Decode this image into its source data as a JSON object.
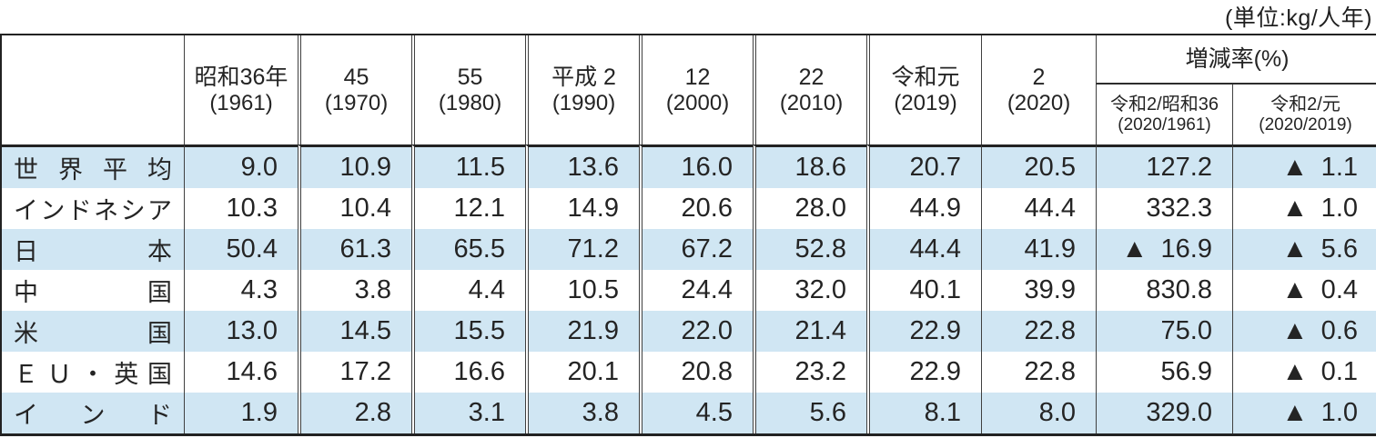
{
  "unit_label": "(単位:kg/人年)",
  "table": {
    "columns": [
      {
        "line1": "昭和36年",
        "line2": "(1961)"
      },
      {
        "line1": "45",
        "line2": "(1970)"
      },
      {
        "line1": "55",
        "line2": "(1980)"
      },
      {
        "line1": "平成 2",
        "line2": "(1990)"
      },
      {
        "line1": "12",
        "line2": "(2000)"
      },
      {
        "line1": "22",
        "line2": "(2010)"
      },
      {
        "line1": "令和元",
        "line2": "(2019)"
      },
      {
        "line1": "2",
        "line2": "(2020)"
      }
    ],
    "group_header": "増減率(%)",
    "group_columns": [
      {
        "line1": "令和2/昭和36",
        "line2": "(2020/1961)"
      },
      {
        "line1": "令和2/元",
        "line2": "(2020/2019)"
      }
    ],
    "rows": [
      {
        "label": "世界平均",
        "values": [
          "9.0",
          "10.9",
          "11.5",
          "13.6",
          "16.0",
          "18.6",
          "20.7",
          "20.5",
          "127.2",
          "▲ 1.1"
        ]
      },
      {
        "label": "インドネシア",
        "values": [
          "10.3",
          "10.4",
          "12.1",
          "14.9",
          "20.6",
          "28.0",
          "44.9",
          "44.4",
          "332.3",
          "▲ 1.0"
        ]
      },
      {
        "label": "日本",
        "values": [
          "50.4",
          "61.3",
          "65.5",
          "71.2",
          "67.2",
          "52.8",
          "44.4",
          "41.9",
          "▲ 16.9",
          "▲ 5.6"
        ]
      },
      {
        "label": "中国",
        "values": [
          "4.3",
          "3.8",
          "4.4",
          "10.5",
          "24.4",
          "32.0",
          "40.1",
          "39.9",
          "830.8",
          "▲ 0.4"
        ]
      },
      {
        "label": "米国",
        "values": [
          "13.0",
          "14.5",
          "15.5",
          "21.9",
          "22.0",
          "21.4",
          "22.9",
          "22.8",
          "75.0",
          "▲ 0.6"
        ]
      },
      {
        "label": "ＥＵ・英国",
        "values": [
          "14.6",
          "17.2",
          "16.6",
          "20.1",
          "20.8",
          "23.2",
          "22.9",
          "22.8",
          "56.9",
          "▲ 0.1"
        ]
      },
      {
        "label": "インド",
        "values": [
          "1.9",
          "2.8",
          "3.1",
          "3.8",
          "4.5",
          "5.6",
          "8.1",
          "8.0",
          "329.0",
          "▲ 1.0"
        ]
      }
    ],
    "colors": {
      "row_alt_bg": "#d0e6f3",
      "border_outer": "#222222",
      "border_inner": "#404040",
      "text": "#242424"
    }
  }
}
